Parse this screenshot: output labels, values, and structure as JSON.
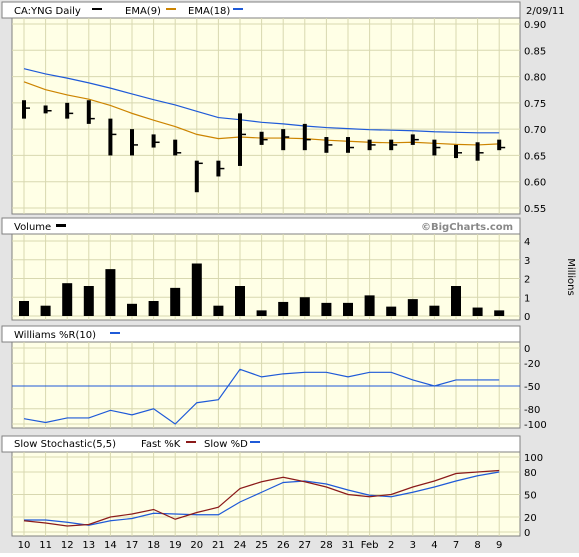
{
  "header": {
    "symbol_label": "CA:YNG Daily",
    "ema9_label": "EMA(9)",
    "ema18_label": "EMA(18)",
    "date": "2/09/11"
  },
  "colors": {
    "price": "#000000",
    "ema9": "#cc8400",
    "ema18": "#1f5ad8",
    "williams": "#1f5ad8",
    "fast_k": "#8b1a1a",
    "slow_d": "#1f5ad8",
    "panel_bg": "#ffffe6",
    "frame_bg": "#e4e4e4"
  },
  "chart_data": [
    {
      "type": "ohlc",
      "panel": "price",
      "title": "CA:YNG Daily",
      "x": [
        "10",
        "11",
        "12",
        "13",
        "14",
        "17",
        "18",
        "19",
        "20",
        "21",
        "24",
        "25",
        "26",
        "27",
        "28",
        "31",
        "Feb",
        "2",
        "3",
        "4",
        "7",
        "8",
        "9"
      ],
      "ohlc": [
        {
          "h": 0.755,
          "l": 0.72,
          "c": 0.74
        },
        {
          "h": 0.745,
          "l": 0.73,
          "c": 0.735
        },
        {
          "h": 0.75,
          "l": 0.72,
          "c": 0.73
        },
        {
          "h": 0.755,
          "l": 0.71,
          "c": 0.72
        },
        {
          "h": 0.72,
          "l": 0.65,
          "c": 0.69
        },
        {
          "h": 0.7,
          "l": 0.65,
          "c": 0.67
        },
        {
          "h": 0.69,
          "l": 0.665,
          "c": 0.675
        },
        {
          "h": 0.68,
          "l": 0.65,
          "c": 0.655
        },
        {
          "h": 0.64,
          "l": 0.58,
          "c": 0.635
        },
        {
          "h": 0.64,
          "l": 0.61,
          "c": 0.625
        },
        {
          "h": 0.73,
          "l": 0.63,
          "c": 0.69
        },
        {
          "h": 0.695,
          "l": 0.67,
          "c": 0.68
        },
        {
          "h": 0.7,
          "l": 0.66,
          "c": 0.685
        },
        {
          "h": 0.71,
          "l": 0.66,
          "c": 0.68
        },
        {
          "h": 0.685,
          "l": 0.655,
          "c": 0.67
        },
        {
          "h": 0.685,
          "l": 0.655,
          "c": 0.665
        },
        {
          "h": 0.68,
          "l": 0.66,
          "c": 0.67
        },
        {
          "h": 0.68,
          "l": 0.66,
          "c": 0.67
        },
        {
          "h": 0.69,
          "l": 0.67,
          "c": 0.68
        },
        {
          "h": 0.68,
          "l": 0.65,
          "c": 0.665
        },
        {
          "h": 0.67,
          "l": 0.645,
          "c": 0.655
        },
        {
          "h": 0.675,
          "l": 0.64,
          "c": 0.655
        },
        {
          "h": 0.68,
          "l": 0.66,
          "c": 0.665
        }
      ],
      "series": [
        {
          "name": "EMA(9)",
          "values": [
            0.79,
            0.775,
            0.765,
            0.757,
            0.745,
            0.73,
            0.717,
            0.705,
            0.69,
            0.682,
            0.685,
            0.683,
            0.683,
            0.682,
            0.679,
            0.677,
            0.675,
            0.674,
            0.675,
            0.673,
            0.671,
            0.67,
            0.672
          ]
        },
        {
          "name": "EMA(18)",
          "values": [
            0.815,
            0.805,
            0.797,
            0.788,
            0.778,
            0.767,
            0.756,
            0.746,
            0.734,
            0.722,
            0.718,
            0.713,
            0.71,
            0.706,
            0.703,
            0.701,
            0.699,
            0.698,
            0.697,
            0.695,
            0.694,
            0.693,
            0.693
          ]
        }
      ],
      "yticks": [
        "0.90",
        "0.85",
        "0.80",
        "0.75",
        "0.70",
        "0.65",
        "0.60",
        "0.55"
      ],
      "ylim": [
        0.55,
        0.9
      ],
      "grid": true
    },
    {
      "type": "bar",
      "panel": "volume",
      "title": "Volume",
      "ylabel": "Millions",
      "watermark": "©BigCharts.com",
      "x": [
        "10",
        "11",
        "12",
        "13",
        "14",
        "17",
        "18",
        "19",
        "20",
        "21",
        "24",
        "25",
        "26",
        "27",
        "28",
        "31",
        "Feb",
        "2",
        "3",
        "4",
        "7",
        "8",
        "9"
      ],
      "values": [
        0.8,
        0.55,
        1.75,
        1.6,
        2.5,
        0.65,
        0.8,
        1.5,
        2.8,
        0.55,
        1.6,
        0.3,
        0.75,
        1.0,
        0.7,
        0.7,
        1.1,
        0.5,
        0.9,
        0.55,
        1.6,
        0.45,
        0.3
      ],
      "yticks": [
        "4",
        "3",
        "2",
        "1",
        "0"
      ],
      "ylim": [
        0,
        4
      ],
      "grid": true
    },
    {
      "type": "line",
      "panel": "williams",
      "title": "Williams %R(10)",
      "x": [
        "10",
        "11",
        "12",
        "13",
        "14",
        "17",
        "18",
        "19",
        "20",
        "21",
        "24",
        "25",
        "26",
        "27",
        "28",
        "31",
        "Feb",
        "2",
        "3",
        "4",
        "7",
        "8",
        "9"
      ],
      "series": [
        {
          "name": "Williams %R(10)",
          "values": [
            -93,
            -98,
            -92,
            -92,
            -82,
            -88,
            -80,
            -100,
            -72,
            -68,
            -28,
            -38,
            -34,
            -32,
            -32,
            -38,
            -32,
            -32,
            -42,
            -50,
            -42,
            -42,
            -42
          ]
        }
      ],
      "reference": -50,
      "yticks": [
        "0",
        "-20",
        "-50",
        "-80",
        "-100"
      ],
      "ylim": [
        -100,
        0
      ],
      "grid": true
    },
    {
      "type": "line",
      "panel": "stochastic",
      "title": "Slow Stochastic(5,5)",
      "x": [
        "10",
        "11",
        "12",
        "13",
        "14",
        "17",
        "18",
        "19",
        "20",
        "21",
        "24",
        "25",
        "26",
        "27",
        "28",
        "31",
        "Feb",
        "2",
        "3",
        "4",
        "7",
        "8",
        "9"
      ],
      "series": [
        {
          "name": "Fast %K",
          "values": [
            15,
            12,
            8,
            10,
            20,
            24,
            30,
            17,
            26,
            33,
            58,
            67,
            73,
            67,
            60,
            50,
            47,
            50,
            60,
            68,
            78,
            80,
            82
          ]
        },
        {
          "name": "Slow %D",
          "values": [
            16,
            16,
            13,
            9,
            15,
            18,
            25,
            24,
            23,
            23,
            40,
            53,
            66,
            68,
            64,
            56,
            49,
            47,
            53,
            60,
            68,
            75,
            80
          ]
        }
      ],
      "yticks": [
        "100",
        "80",
        "50",
        "20",
        "0"
      ],
      "ylim": [
        0,
        100
      ],
      "grid": true
    }
  ],
  "panels": {
    "volume_label": "Volume",
    "volume_unit": "Millions",
    "watermark": "©BigCharts.com",
    "williams_label": "Williams %R(10)",
    "stoch_label": "Slow Stochastic(5,5)",
    "fast_k_label": "Fast %K",
    "slow_d_label": "Slow %D"
  },
  "x_axis": [
    "10",
    "11",
    "12",
    "13",
    "14",
    "17",
    "18",
    "19",
    "20",
    "21",
    "24",
    "25",
    "26",
    "27",
    "28",
    "31",
    "Feb",
    "2",
    "3",
    "4",
    "7",
    "8",
    "9"
  ]
}
